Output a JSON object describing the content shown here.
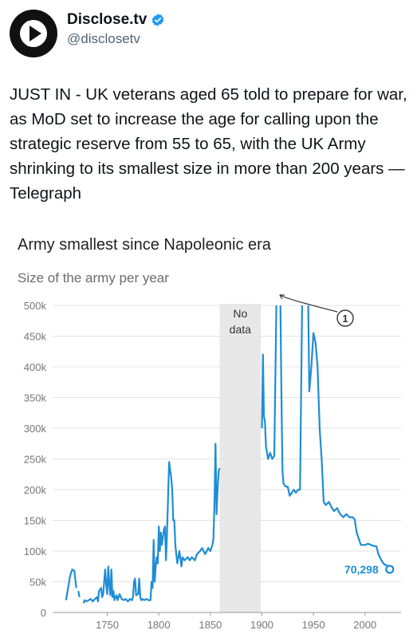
{
  "tweet": {
    "display_name": "Disclose.tv",
    "handle": "@disclosetv",
    "text": "JUST IN - UK veterans aged 65 told to prepare for war, as MoD set to increase the age for calling upon the strategic reserve from 55 to 65, with the UK Army shrinking to its smallest size in more than 200 years — Telegraph"
  },
  "icons": {
    "avatar": "play-logo-icon",
    "verified": "verified-badge-icon"
  },
  "colors": {
    "series": "#1f8dd6",
    "no_data_band": "#e8e8e8",
    "verified": "#1d9bf0"
  },
  "chart_data": {
    "type": "line",
    "title": "Army smallest since Napoleonic era",
    "subtitle": "Size of the army per year",
    "xlabel": "",
    "ylabel": "",
    "xlim": [
      1697,
      2035
    ],
    "ylim": [
      0,
      500000
    ],
    "x_ticks": [
      "1750",
      "1800",
      "1850",
      "1900",
      "1950",
      "2000"
    ],
    "y_ticks": [
      "0",
      "50k",
      "100k",
      "150k",
      "200k",
      "250k",
      "300k",
      "350k",
      "400k",
      "450k",
      "500k"
    ],
    "grid": true,
    "no_data_band": {
      "from": 1859,
      "to": 1899,
      "label": [
        "No",
        "data"
      ]
    },
    "annotation": {
      "marker": "1",
      "year": 1915
    },
    "end_label": "70,298",
    "series": [
      {
        "segments": [
          [
            [
              1710,
              20000
            ],
            [
              1712,
              40000
            ],
            [
              1714,
              60000
            ],
            [
              1716,
              70000
            ],
            [
              1718,
              68000
            ],
            [
              1720,
              40000
            ]
          ],
          [
            [
              1722,
              35000
            ],
            [
              1723,
              25000
            ]
          ],
          [
            [
              1727,
              15000
            ],
            [
              1728,
              20000
            ],
            [
              1730,
              18000
            ],
            [
              1732,
              20000
            ],
            [
              1734,
              22000
            ],
            [
              1736,
              18000
            ],
            [
              1738,
              22000
            ],
            [
              1740,
              25000
            ],
            [
              1741,
              18000
            ],
            [
              1742,
              35000
            ],
            [
              1744,
              40000
            ],
            [
              1745,
              25000
            ],
            [
              1746,
              30000
            ],
            [
              1748,
              70000
            ],
            [
              1749,
              45000
            ],
            [
              1750,
              30000
            ],
            [
              1751,
              75000
            ],
            [
              1752,
              45000
            ],
            [
              1753,
              28000
            ],
            [
              1754,
              70000
            ],
            [
              1755,
              25000
            ],
            [
              1756,
              35000
            ],
            [
              1757,
              20000
            ],
            [
              1758,
              25000
            ],
            [
              1759,
              28000
            ],
            [
              1760,
              20000
            ],
            [
              1761,
              25000
            ],
            [
              1762,
              30000
            ],
            [
              1764,
              22000
            ],
            [
              1766,
              20000
            ],
            [
              1768,
              22000
            ],
            [
              1770,
              18000
            ],
            [
              1772,
              22000
            ],
            [
              1774,
              20000
            ],
            [
              1775,
              25000
            ],
            [
              1776,
              50000
            ],
            [
              1777,
              55000
            ],
            [
              1778,
              28000
            ],
            [
              1780,
              30000
            ],
            [
              1781,
              55000
            ],
            [
              1782,
              25000
            ],
            [
              1783,
              20000
            ],
            [
              1784,
              22000
            ],
            [
              1786,
              20000
            ],
            [
              1788,
              22000
            ],
            [
              1790,
              20000
            ],
            [
              1792,
              20000
            ],
            [
              1793,
              50000
            ],
            [
              1794,
              40000
            ],
            [
              1795,
              118000
            ],
            [
              1796,
              50000
            ],
            [
              1797,
              75000
            ],
            [
              1798,
              90000
            ],
            [
              1799,
              80000
            ],
            [
              1800,
              140000
            ],
            [
              1801,
              100000
            ],
            [
              1802,
              130000
            ],
            [
              1803,
              110000
            ],
            [
              1805,
              135000
            ],
            [
              1806,
              140000
            ],
            [
              1807,
              85000
            ],
            [
              1808,
              130000
            ],
            [
              1810,
              245000
            ],
            [
              1812,
              220000
            ],
            [
              1813,
              200000
            ],
            [
              1814,
              150000
            ],
            [
              1815,
              150000
            ],
            [
              1816,
              110000
            ],
            [
              1817,
              95000
            ],
            [
              1818,
              80000
            ],
            [
              1820,
              100000
            ],
            [
              1822,
              75000
            ],
            [
              1823,
              90000
            ],
            [
              1825,
              85000
            ],
            [
              1828,
              90000
            ],
            [
              1830,
              85000
            ],
            [
              1832,
              90000
            ],
            [
              1835,
              85000
            ],
            [
              1837,
              95000
            ],
            [
              1840,
              100000
            ],
            [
              1842,
              105000
            ],
            [
              1845,
              95000
            ],
            [
              1848,
              105000
            ],
            [
              1850,
              100000
            ],
            [
              1852,
              110000
            ],
            [
              1853,
              120000
            ],
            [
              1854,
              180000
            ],
            [
              1855,
              275000
            ],
            [
              1856,
              160000
            ],
            [
              1857,
              200000
            ],
            [
              1858,
              230000
            ],
            [
              1859,
              235000
            ]
          ],
          [
            [
              1900,
              300000
            ],
            [
              1901,
              420000
            ],
            [
              1902,
              320000
            ],
            [
              1903,
              310000
            ],
            [
              1904,
              270000
            ],
            [
              1906,
              250000
            ],
            [
              1908,
              260000
            ],
            [
              1910,
              250000
            ],
            [
              1912,
              255000
            ],
            [
              1914,
              500000
            ]
          ],
          [
            [
              1918,
              500000
            ],
            [
              1919,
              350000
            ],
            [
              1920,
              230000
            ],
            [
              1921,
              210000
            ],
            [
              1923,
              205000
            ],
            [
              1925,
              205000
            ],
            [
              1927,
              190000
            ],
            [
              1929,
              195000
            ],
            [
              1931,
              200000
            ],
            [
              1933,
              195000
            ],
            [
              1935,
              200000
            ],
            [
              1937,
              200000
            ],
            [
              1939,
              500000
            ]
          ],
          [
            [
              1945,
              500000
            ],
            [
              1946,
              360000
            ],
            [
              1948,
              400000
            ],
            [
              1950,
              455000
            ],
            [
              1952,
              440000
            ],
            [
              1954,
              400000
            ],
            [
              1956,
              300000
            ],
            [
              1958,
              250000
            ],
            [
              1960,
              180000
            ],
            [
              1962,
              175000
            ],
            [
              1965,
              180000
            ],
            [
              1968,
              170000
            ],
            [
              1970,
              165000
            ],
            [
              1973,
              170000
            ],
            [
              1976,
              160000
            ],
            [
              1979,
              155000
            ],
            [
              1982,
              160000
            ],
            [
              1985,
              155000
            ],
            [
              1988,
              155000
            ],
            [
              1990,
              152000
            ],
            [
              1992,
              130000
            ],
            [
              1994,
              120000
            ],
            [
              1996,
              110000
            ],
            [
              1998,
              110000
            ],
            [
              2000,
              110000
            ],
            [
              2003,
              112000
            ],
            [
              2006,
              110000
            ],
            [
              2009,
              108000
            ],
            [
              2011,
              108000
            ],
            [
              2013,
              95000
            ],
            [
              2015,
              88000
            ],
            [
              2017,
              82000
            ],
            [
              2019,
              78000
            ],
            [
              2021,
              77000
            ],
            [
              2024,
              70298
            ]
          ]
        ]
      }
    ]
  }
}
